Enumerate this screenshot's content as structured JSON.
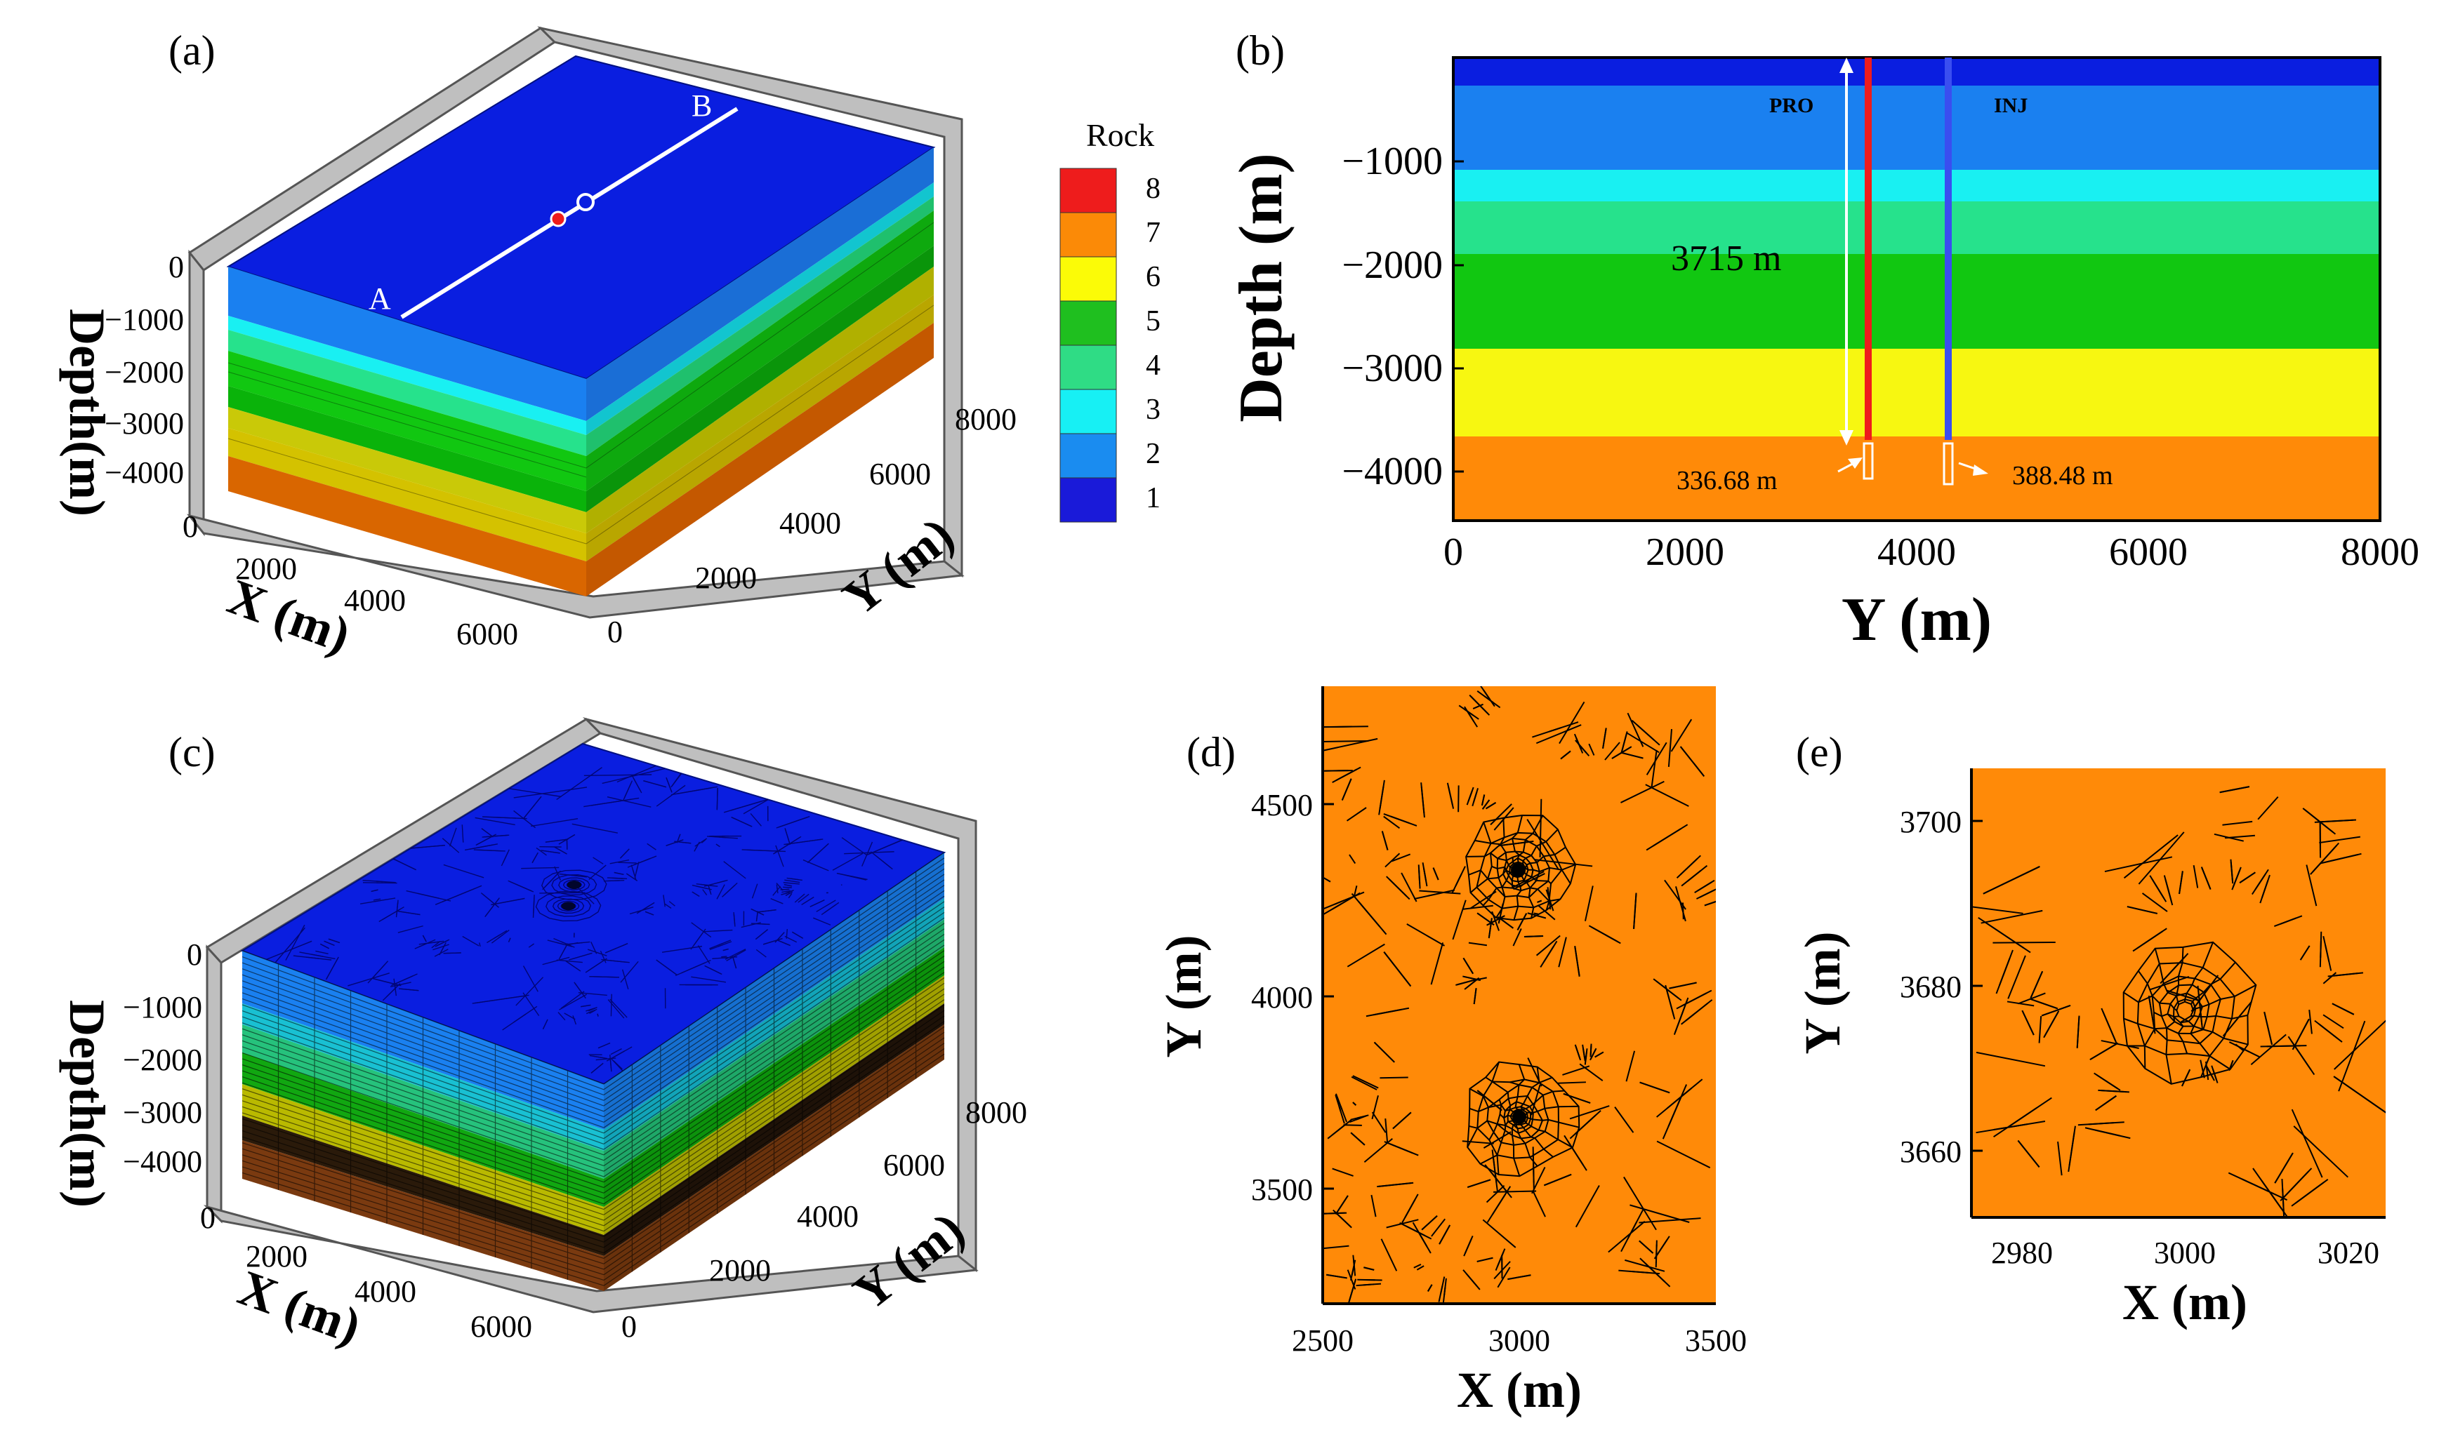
{
  "panels": {
    "a": {
      "label": "(a)",
      "x_axis_title": "X (m)",
      "y_axis_title": "Y (m)",
      "z_axis_title": "Depth(m)",
      "x_ticks": [
        "0",
        "2000",
        "4000",
        "6000"
      ],
      "y_ticks": [
        "0",
        "2000",
        "4000",
        "6000",
        "8000"
      ],
      "z_ticks": [
        "0",
        "−1000",
        "−2000",
        "−3000",
        "−4000"
      ],
      "line_label_a": "A",
      "line_label_b": "B"
    },
    "b": {
      "label": "(b)",
      "x_axis_title": "Y (m)",
      "y_axis_title": "Depth (m)",
      "x_ticks": [
        "0",
        "2000",
        "4000",
        "6000",
        "8000"
      ],
      "y_ticks": [
        "−1000",
        "−2000",
        "−3000",
        "−4000"
      ],
      "well_pro": "PRO",
      "well_inj": "INJ",
      "height_annotation": "3715 m",
      "pro_interval": "336.68 m",
      "inj_interval": "388.48 m"
    },
    "c": {
      "label": "(c)",
      "x_axis_title": "X (m)",
      "y_axis_title": "Y (m)",
      "z_axis_title": "Depth(m)",
      "x_ticks": [
        "0",
        "2000",
        "4000",
        "6000"
      ],
      "y_ticks": [
        "0",
        "2000",
        "4000",
        "6000",
        "8000"
      ],
      "z_ticks": [
        "0",
        "−1000",
        "−2000",
        "−3000",
        "−4000"
      ]
    },
    "d": {
      "label": "(d)",
      "x_axis_title": "X (m)",
      "y_axis_title": "Y (m)",
      "x_ticks": [
        "2500",
        "3000",
        "3500"
      ],
      "y_ticks": [
        "4500",
        "4000",
        "3500"
      ]
    },
    "e": {
      "label": "(e)",
      "x_axis_title": "X (m)",
      "y_axis_title": "Y (m)",
      "x_ticks": [
        "2980",
        "3000",
        "3020"
      ],
      "y_ticks": [
        "3700",
        "3680",
        "3660"
      ]
    }
  },
  "legend": {
    "title": "Rock",
    "entries": [
      "8",
      "7",
      "6",
      "5",
      "4",
      "3",
      "2",
      "1"
    ],
    "colors": [
      "#ee1c1c",
      "#fb8a07",
      "#fbfb07",
      "#1fbf1f",
      "#2fdc85",
      "#17f0f4",
      "#1a8cf0",
      "#1a1ad9"
    ]
  },
  "layer_colors": {
    "1": "#0a1ee0",
    "2": "#1a80f0",
    "3": "#19f0f2",
    "4": "#26e28c",
    "5": "#11c711",
    "6": "#11c711",
    "7": "#f7f711",
    "8": "#ff8a08"
  }
}
